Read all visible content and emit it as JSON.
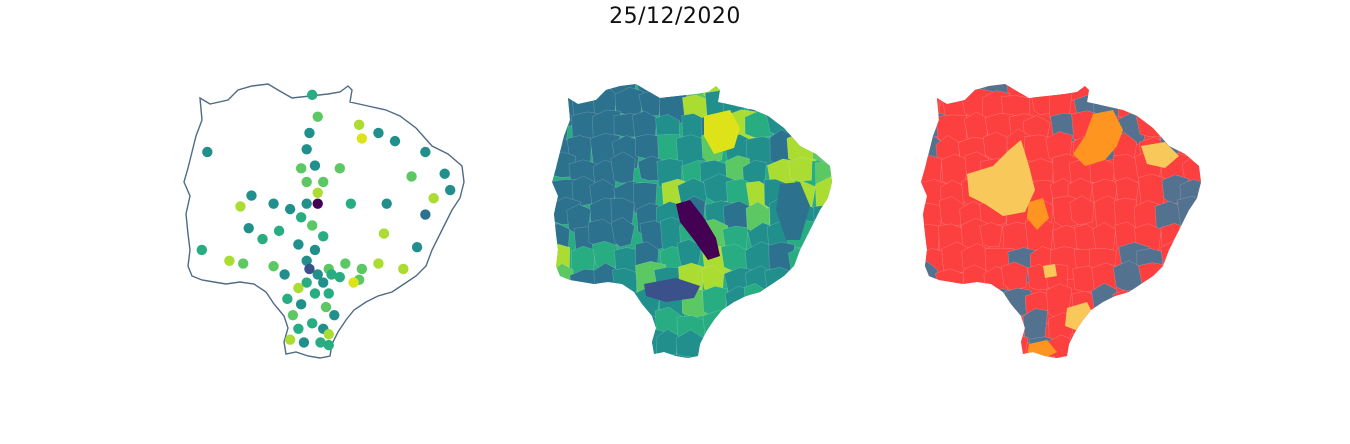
{
  "figure": {
    "title": "25/12/2020"
  },
  "colors": {
    "outline": "#4f6b85",
    "viridis": [
      "#440154",
      "#3b518b",
      "#2c718e",
      "#21908d",
      "#27ad81",
      "#5cc863",
      "#aadc32",
      "#dde318"
    ],
    "classes": {
      "red": "#fc4040",
      "blue": "#52728f",
      "orange": "#fd9520",
      "yellow": "#f9c85a"
    }
  },
  "dots": [
    {
      "lon": 0.45,
      "lat": 0.04,
      "c": 4
    },
    {
      "lon": 0.47,
      "lat": 0.12,
      "c": 5
    },
    {
      "lon": 0.44,
      "lat": 0.18,
      "c": 3
    },
    {
      "lon": 0.62,
      "lat": 0.15,
      "c": 6
    },
    {
      "lon": 0.69,
      "lat": 0.18,
      "c": 3
    },
    {
      "lon": 0.63,
      "lat": 0.2,
      "c": 7
    },
    {
      "lon": 0.75,
      "lat": 0.21,
      "c": 3
    },
    {
      "lon": 0.43,
      "lat": 0.24,
      "c": 3
    },
    {
      "lon": 0.86,
      "lat": 0.25,
      "c": 3
    },
    {
      "lon": 0.07,
      "lat": 0.25,
      "c": 3
    },
    {
      "lon": 0.46,
      "lat": 0.3,
      "c": 3
    },
    {
      "lon": 0.41,
      "lat": 0.31,
      "c": 5
    },
    {
      "lon": 0.55,
      "lat": 0.31,
      "c": 5
    },
    {
      "lon": 0.81,
      "lat": 0.34,
      "c": 5
    },
    {
      "lon": 0.93,
      "lat": 0.33,
      "c": 3
    },
    {
      "lon": 0.43,
      "lat": 0.36,
      "c": 5
    },
    {
      "lon": 0.49,
      "lat": 0.36,
      "c": 5
    },
    {
      "lon": 0.95,
      "lat": 0.39,
      "c": 3
    },
    {
      "lon": 0.23,
      "lat": 0.41,
      "c": 3
    },
    {
      "lon": 0.47,
      "lat": 0.4,
      "c": 6
    },
    {
      "lon": 0.89,
      "lat": 0.42,
      "c": 6
    },
    {
      "lon": 0.19,
      "lat": 0.45,
      "c": 6
    },
    {
      "lon": 0.31,
      "lat": 0.44,
      "c": 3
    },
    {
      "lon": 0.43,
      "lat": 0.44,
      "c": 3
    },
    {
      "lon": 0.47,
      "lat": 0.44,
      "c": 0
    },
    {
      "lon": 0.59,
      "lat": 0.44,
      "c": 4
    },
    {
      "lon": 0.72,
      "lat": 0.44,
      "c": 3
    },
    {
      "lon": 0.37,
      "lat": 0.46,
      "c": 3
    },
    {
      "lon": 0.41,
      "lat": 0.49,
      "c": 4
    },
    {
      "lon": 0.86,
      "lat": 0.48,
      "c": 2
    },
    {
      "lon": 0.22,
      "lat": 0.53,
      "c": 3
    },
    {
      "lon": 0.33,
      "lat": 0.54,
      "c": 4
    },
    {
      "lon": 0.45,
      "lat": 0.52,
      "c": 5
    },
    {
      "lon": 0.71,
      "lat": 0.55,
      "c": 6
    },
    {
      "lon": 0.27,
      "lat": 0.57,
      "c": 4
    },
    {
      "lon": 0.49,
      "lat": 0.56,
      "c": 4
    },
    {
      "lon": 0.4,
      "lat": 0.59,
      "c": 3
    },
    {
      "lon": 0.46,
      "lat": 0.61,
      "c": 3
    },
    {
      "lon": 0.83,
      "lat": 0.6,
      "c": 3
    },
    {
      "lon": 0.05,
      "lat": 0.61,
      "c": 4
    },
    {
      "lon": 0.15,
      "lat": 0.65,
      "c": 6
    },
    {
      "lon": 0.2,
      "lat": 0.66,
      "c": 5
    },
    {
      "lon": 0.31,
      "lat": 0.67,
      "c": 5
    },
    {
      "lon": 0.43,
      "lat": 0.65,
      "c": 3
    },
    {
      "lon": 0.51,
      "lat": 0.68,
      "c": 5
    },
    {
      "lon": 0.57,
      "lat": 0.66,
      "c": 5
    },
    {
      "lon": 0.63,
      "lat": 0.68,
      "c": 5
    },
    {
      "lon": 0.69,
      "lat": 0.66,
      "c": 6
    },
    {
      "lon": 0.78,
      "lat": 0.68,
      "c": 6
    },
    {
      "lon": 0.44,
      "lat": 0.68,
      "c": 1
    },
    {
      "lon": 0.47,
      "lat": 0.7,
      "c": 3
    },
    {
      "lon": 0.52,
      "lat": 0.7,
      "c": 4
    },
    {
      "lon": 0.55,
      "lat": 0.71,
      "c": 4
    },
    {
      "lon": 0.62,
      "lat": 0.72,
      "c": 5
    },
    {
      "lon": 0.35,
      "lat": 0.7,
      "c": 3
    },
    {
      "lon": 0.43,
      "lat": 0.73,
      "c": 4
    },
    {
      "lon": 0.49,
      "lat": 0.73,
      "c": 3
    },
    {
      "lon": 0.6,
      "lat": 0.73,
      "c": 7
    },
    {
      "lon": 0.4,
      "lat": 0.75,
      "c": 6
    },
    {
      "lon": 0.46,
      "lat": 0.77,
      "c": 4
    },
    {
      "lon": 0.51,
      "lat": 0.77,
      "c": 4
    },
    {
      "lon": 0.36,
      "lat": 0.79,
      "c": 4
    },
    {
      "lon": 0.41,
      "lat": 0.81,
      "c": 3
    },
    {
      "lon": 0.5,
      "lat": 0.82,
      "c": 5
    },
    {
      "lon": 0.38,
      "lat": 0.85,
      "c": 5
    },
    {
      "lon": 0.53,
      "lat": 0.85,
      "c": 3
    },
    {
      "lon": 0.45,
      "lat": 0.88,
      "c": 4
    },
    {
      "lon": 0.4,
      "lat": 0.9,
      "c": 4
    },
    {
      "lon": 0.49,
      "lat": 0.9,
      "c": 3
    },
    {
      "lon": 0.51,
      "lat": 0.92,
      "c": 6
    },
    {
      "lon": 0.37,
      "lat": 0.94,
      "c": 6
    },
    {
      "lon": 0.42,
      "lat": 0.95,
      "c": 3
    },
    {
      "lon": 0.48,
      "lat": 0.95,
      "c": 4
    },
    {
      "lon": 0.51,
      "lat": 0.96,
      "c": 4
    }
  ]
}
